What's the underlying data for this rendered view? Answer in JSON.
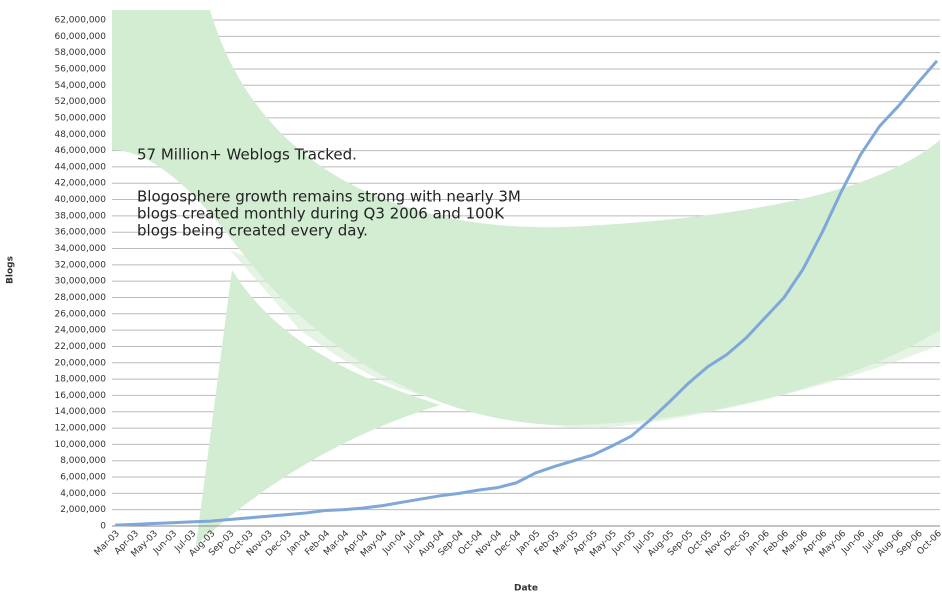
{
  "chart_data": {
    "type": "line",
    "annotations": [
      "57 Million+ Weblogs Tracked.",
      "Blogosphere growth remains strong with nearly 3M",
      "blogs created monthly during Q3 2006 and 100K",
      "blogs being created every day."
    ],
    "xlabel": "Date",
    "ylabel": "Blogs",
    "categories": [
      "Mar-03",
      "Apr-03",
      "May-03",
      "Jun-03",
      "Jul-03",
      "Aug-03",
      "Sep-03",
      "Oct-03",
      "Nov-03",
      "Dec-03",
      "Jan-04",
      "Feb-04",
      "Mar-04",
      "Apr-04",
      "May-04",
      "Jun-04",
      "Jul-04",
      "Aug-04",
      "Sep-04",
      "Oct-04",
      "Nov-04",
      "Dec-04",
      "Jan-05",
      "Feb-05",
      "Mar-05",
      "Apr-05",
      "May-05",
      "Jun-05",
      "Jul-05",
      "Aug-05",
      "Sep-05",
      "Oct-05",
      "Nov-05",
      "Dec-05",
      "Jan-06",
      "Feb-06",
      "Mar-06",
      "Apr-06",
      "May-06",
      "Jun-06",
      "Jul-06",
      "Aug-06",
      "Sep-06",
      "Oct-06"
    ],
    "series": [
      {
        "name": "Blogs",
        "color": "#7fa8d8",
        "values": [
          100000,
          200000,
          300000,
          400000,
          500000,
          600000,
          800000,
          1000000,
          1200000,
          1400000,
          1600000,
          1900000,
          2000000,
          2200000,
          2500000,
          2900000,
          3300000,
          3700000,
          4000000,
          4400000,
          4700000,
          5300000,
          6500000,
          7300000,
          8000000,
          8700000,
          9800000,
          11000000,
          13000000,
          15200000,
          17500000,
          19500000,
          21000000,
          23000000,
          25500000,
          28000000,
          31500000,
          36000000,
          41000000,
          45500000,
          49000000,
          51500000,
          54300000,
          57000000
        ]
      }
    ],
    "ylim": [
      0,
      62000000
    ],
    "yticks": [
      0,
      {
        "value": 2000000,
        "label": "2,000,000"
      },
      {
        "value": 4000000,
        "label": "4,000,000"
      },
      {
        "value": 6000000,
        "label": "6,000,000"
      },
      {
        "value": 8000000,
        "label": "8,000,000"
      },
      {
        "value": 10000000,
        "label": "10,000,000"
      },
      {
        "value": 12000000,
        "label": "12,000,000"
      },
      {
        "value": 14000000,
        "label": "14,000,000"
      },
      {
        "value": 16000000,
        "label": "16,000,000"
      },
      {
        "value": 18000000,
        "label": "18,000,000"
      },
      {
        "value": 20000000,
        "label": "20,000,000"
      },
      {
        "value": 22000000,
        "label": "22,000,000"
      },
      {
        "value": 24000000,
        "label": "24,000,000"
      },
      {
        "value": 26000000,
        "label": "26,000,000"
      },
      {
        "value": 28000000,
        "label": "28,000,000"
      },
      {
        "value": 30000000,
        "label": "30,000,000"
      },
      {
        "value": 32000000,
        "label": "32,000,000"
      },
      {
        "value": 34000000,
        "label": "34,000,000"
      },
      {
        "value": 36000000,
        "label": "36,000,000"
      },
      {
        "value": 38000000,
        "label": "38,000,000"
      },
      {
        "value": 40000000,
        "label": "40,000,000"
      },
      {
        "value": 42000000,
        "label": "42,000,000"
      },
      {
        "value": 44000000,
        "label": "44,000,000"
      },
      {
        "value": 46000000,
        "label": "46,000,000"
      },
      {
        "value": 48000000,
        "label": "48,000,000"
      },
      {
        "value": 50000000,
        "label": "50,000,000"
      },
      {
        "value": 52000000,
        "label": "52,000,000"
      },
      {
        "value": 54000000,
        "label": "54,000,000"
      },
      {
        "value": 56000000,
        "label": "56,000,000"
      },
      {
        "value": 58000000,
        "label": "58,000,000"
      },
      {
        "value": 60000000,
        "label": "60,000,000"
      },
      {
        "value": 62000000,
        "label": "62,000,000"
      }
    ],
    "grid": true
  }
}
